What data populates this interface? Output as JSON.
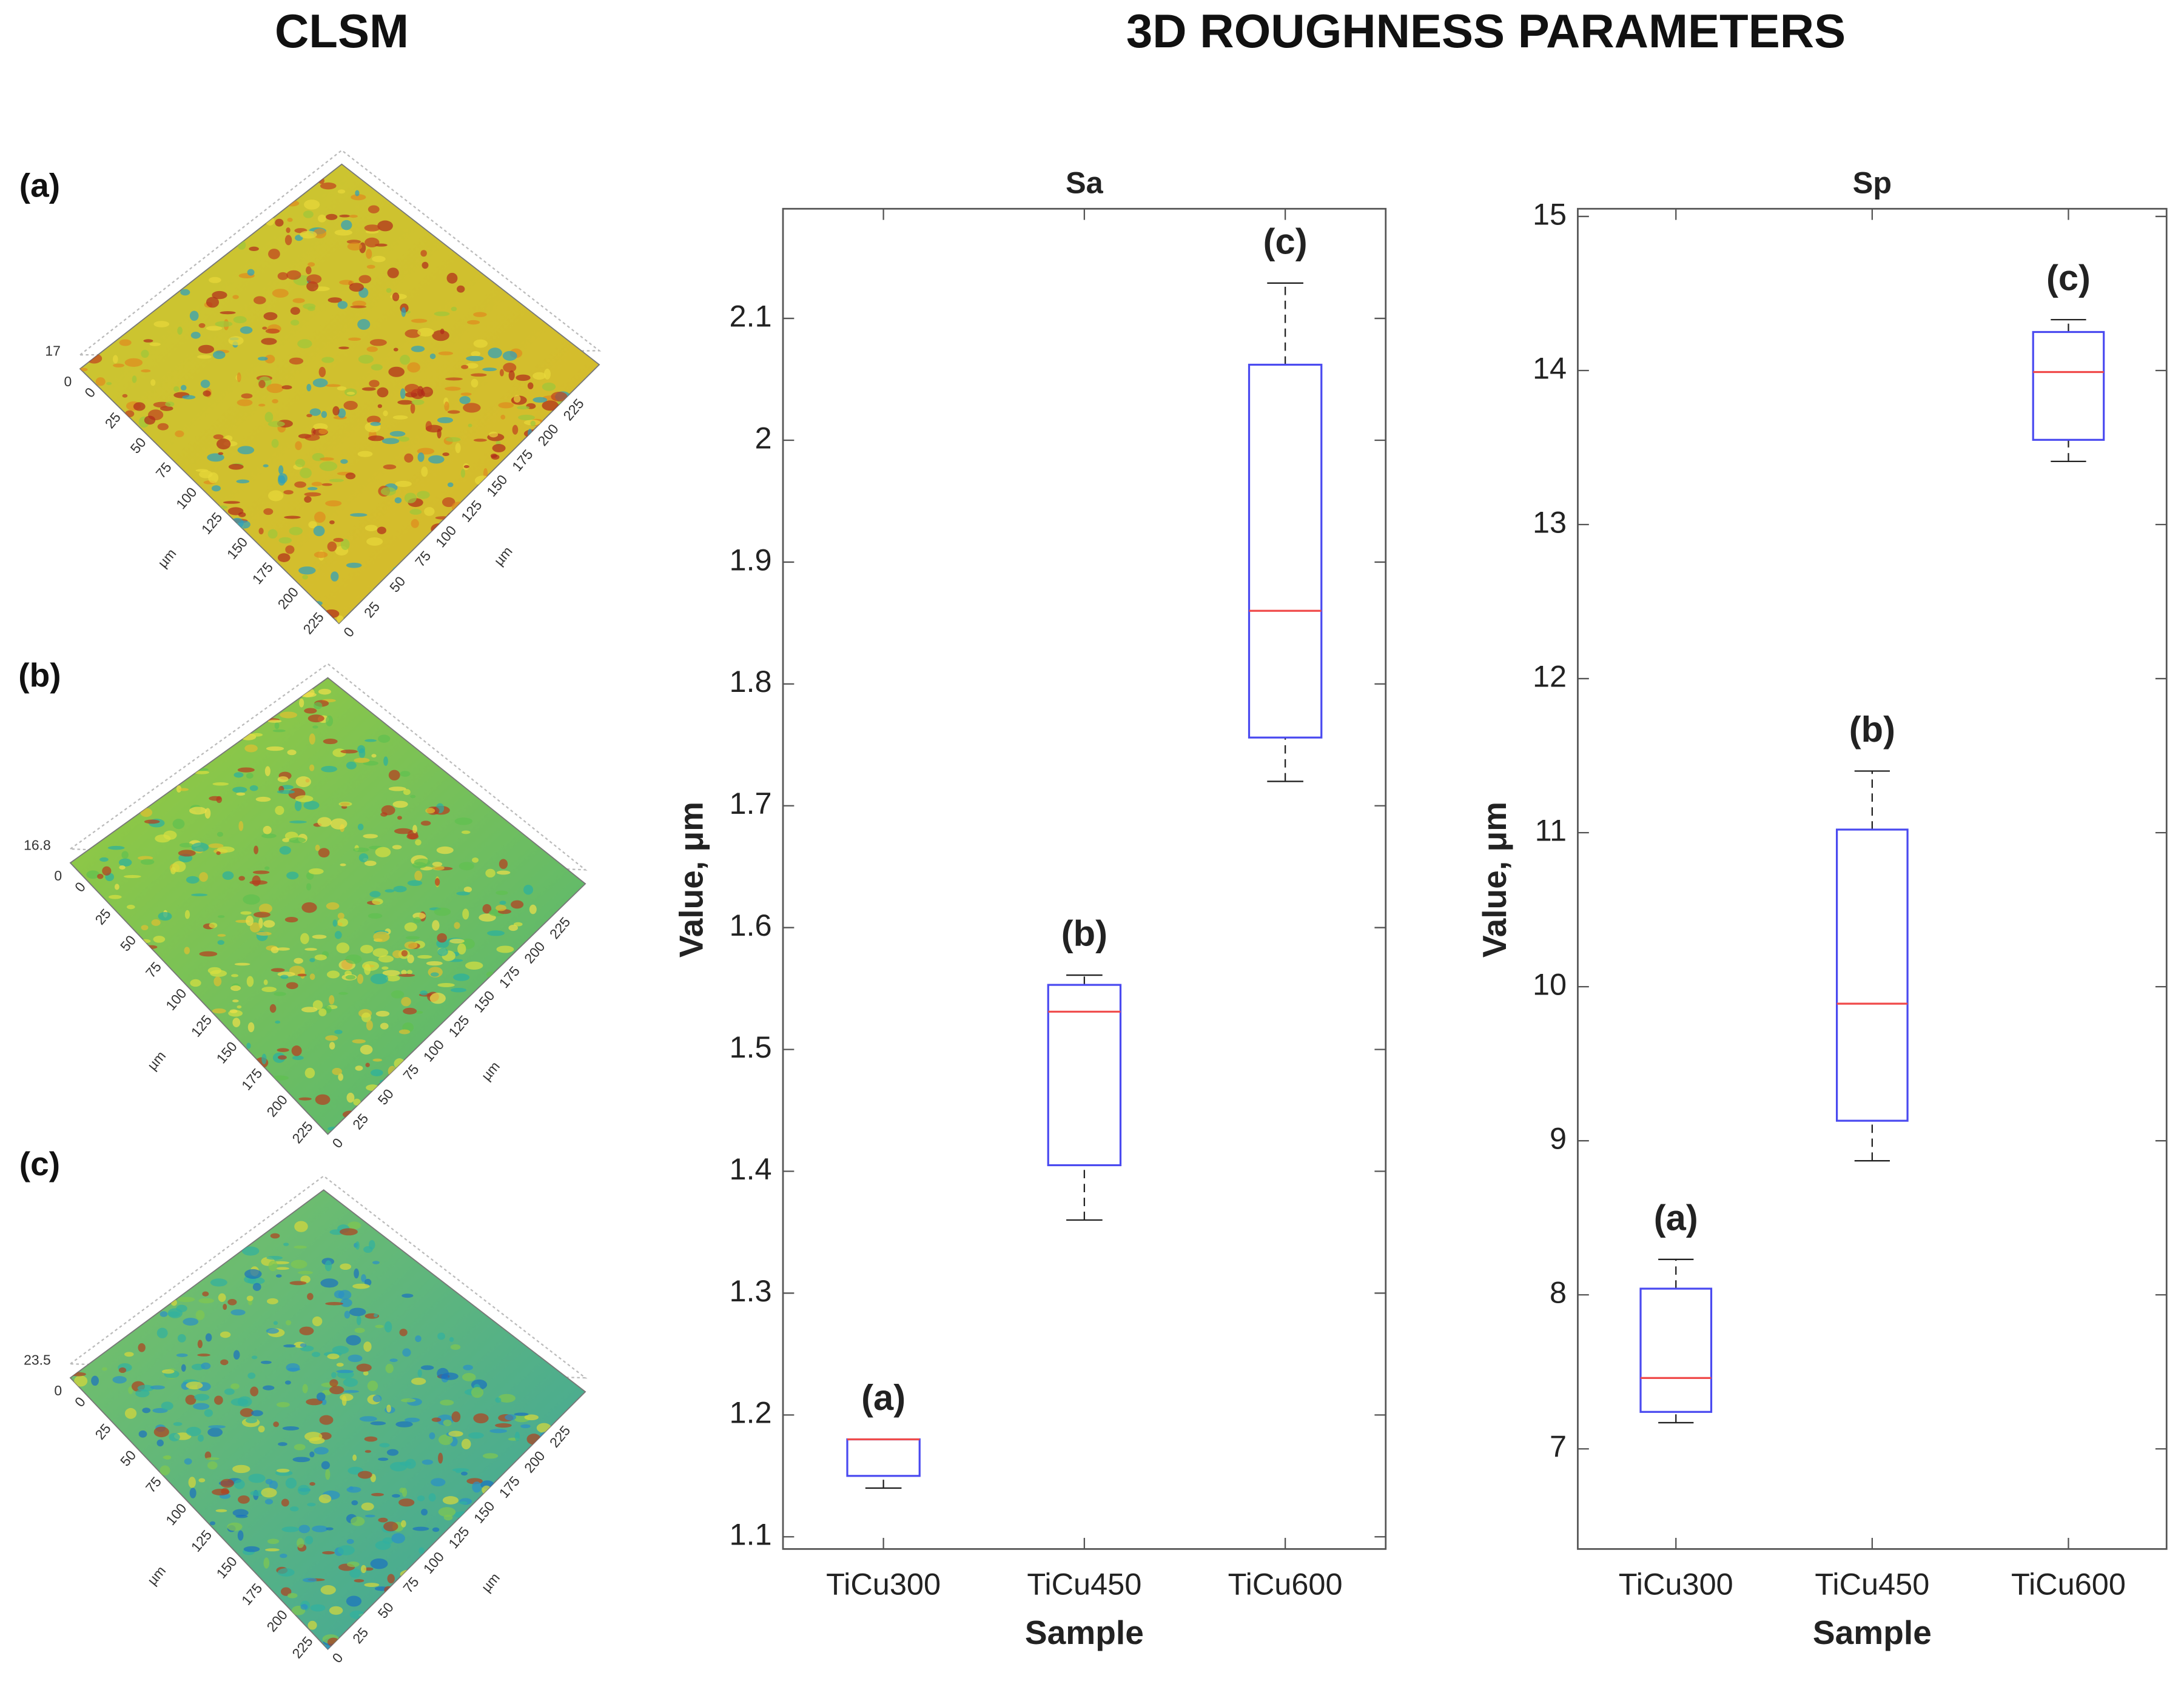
{
  "headings": [
    "CLSM",
    "3D ROUGHNESS PARAMETERS"
  ],
  "clsm": {
    "unit": "µm",
    "xy_ticks": [
      0,
      25,
      50,
      75,
      100,
      125,
      150,
      175,
      200,
      225
    ],
    "panels": [
      {
        "label": "(a)",
        "z_max": 17,
        "z_min": 0
      },
      {
        "label": "(b)",
        "z_max": 16.8,
        "z_min": 0
      },
      {
        "label": "(c)",
        "z_max": 23.5,
        "z_min": 0
      }
    ]
  },
  "chart_data": [
    {
      "type": "box",
      "title": "Sa",
      "x_label": "Sample",
      "y_label": "Value, μm",
      "categories": [
        "TiCu300",
        "TiCu450",
        "TiCu600"
      ],
      "group_labels": [
        "(a)",
        "(b)",
        "(c)"
      ],
      "boxes": [
        {
          "low": 1.14,
          "q1": 1.15,
          "median": 1.18,
          "q3": 1.18,
          "high": 1.18
        },
        {
          "low": 1.36,
          "q1": 1.405,
          "median": 1.531,
          "q3": 1.553,
          "high": 1.561
        },
        {
          "low": 1.72,
          "q1": 1.756,
          "median": 1.86,
          "q3": 2.062,
          "high": 2.129
        }
      ],
      "box_color": "#4a4af0",
      "median_color": "#f04a4a",
      "whisker_color": "#222222",
      "ylim": [
        1.09,
        2.19
      ],
      "yticks": [
        1.1,
        1.2,
        1.3,
        1.4,
        1.5,
        1.6,
        1.7,
        1.8,
        1.9,
        2,
        2.1
      ]
    },
    {
      "type": "box",
      "title": "Sp",
      "x_label": "Sample",
      "y_label": "Value, μm",
      "categories": [
        "TiCu300",
        "TiCu450",
        "TiCu600"
      ],
      "group_labels": [
        "(a)",
        "(b)",
        "(c)"
      ],
      "boxes": [
        {
          "low": 7.17,
          "q1": 7.24,
          "median": 7.46,
          "q3": 8.04,
          "high": 8.23
        },
        {
          "low": 8.87,
          "q1": 9.13,
          "median": 9.89,
          "q3": 11.02,
          "high": 11.4
        },
        {
          "low": 13.41,
          "q1": 13.55,
          "median": 13.99,
          "q3": 14.25,
          "high": 14.33
        }
      ],
      "box_color": "#4a4af0",
      "median_color": "#f04a4a",
      "whisker_color": "#222222",
      "ylim": [
        6.35,
        15.05
      ],
      "yticks": [
        7,
        8,
        9,
        10,
        11,
        12,
        13,
        14,
        15
      ]
    }
  ]
}
